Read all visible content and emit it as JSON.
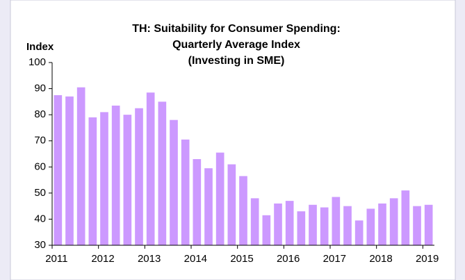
{
  "chart_data": {
    "type": "bar",
    "title": [
      "TH: Suitability for Consumer Spending:",
      "Quarterly Average Index",
      "(Investing in SME)"
    ],
    "y_label": "Index",
    "categories": [
      "2011",
      null,
      null,
      null,
      "2012",
      null,
      null,
      null,
      "2013",
      null,
      null,
      null,
      "2014",
      null,
      null,
      null,
      "2015",
      null,
      null,
      null,
      "2016",
      null,
      null,
      null,
      "2017",
      null,
      null,
      null,
      "2018",
      null,
      null,
      null,
      "2019"
    ],
    "values": [
      87.5,
      87,
      90.5,
      79,
      81,
      83.5,
      80,
      82.5,
      88.5,
      85,
      78,
      70.5,
      63,
      59.5,
      65.5,
      61,
      56.5,
      48,
      41.5,
      46,
      47,
      43,
      45.5,
      44.5,
      48.5,
      45,
      39.5,
      44,
      46,
      48,
      51,
      45,
      45.5
    ],
    "color": "#cc99ff",
    "ylim": [
      30,
      100
    ],
    "yticks": [
      30,
      40,
      50,
      60,
      70,
      80,
      90,
      100
    ],
    "grid": false
  }
}
